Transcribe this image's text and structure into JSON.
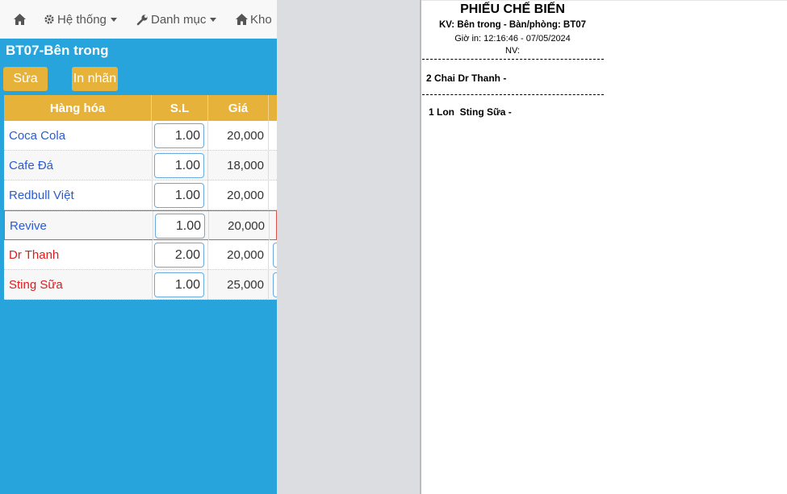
{
  "navbar": {
    "items": [
      {
        "label": "",
        "icon": "home-icon"
      },
      {
        "label": "Hệ thống",
        "icon": "gear-icon"
      },
      {
        "label": "Danh mục",
        "icon": "wrench-icon"
      },
      {
        "label": "Kho",
        "icon": "home-icon"
      }
    ]
  },
  "order": {
    "title": "BT07-Bên trong",
    "edit_button": "Sửa",
    "print_label_button": "In nhãn"
  },
  "table": {
    "headers": [
      "Hàng hóa",
      "S.L",
      "Giá"
    ],
    "rows": [
      {
        "name": "Coca Cola",
        "qty": "1.00",
        "price": "20,000",
        "status": "normal"
      },
      {
        "name": "Cafe Đá",
        "qty": "1.00",
        "price": "18,000",
        "status": "normal"
      },
      {
        "name": "Redbull Việt",
        "qty": "1.00",
        "price": "20,000",
        "status": "normal"
      },
      {
        "name": "Revive",
        "qty": "1.00",
        "price": "20,000",
        "status": "selected"
      },
      {
        "name": "Dr Thanh",
        "qty": "2.00",
        "price": "20,000",
        "status": "new"
      },
      {
        "name": "Sting Sữa",
        "qty": "1.00",
        "price": "25,000",
        "status": "new"
      }
    ]
  },
  "receipt": {
    "title": "PHIẾU CHẾ BIẾN",
    "area": "KV: Bên trong - Bàn/phòng: BT07",
    "print_time": "Giờ in: 12:16:46 - 07/05/2024",
    "staff": "NV:",
    "lines": [
      "2 Chai Dr Thanh -",
      "1 Lon  Sting Sữa -"
    ]
  },
  "colors": {
    "panel_bg": "#27a4dc",
    "accent_gold": "#e7b23a",
    "item_blue": "#2a5cd0",
    "item_red": "#e01b1b"
  }
}
